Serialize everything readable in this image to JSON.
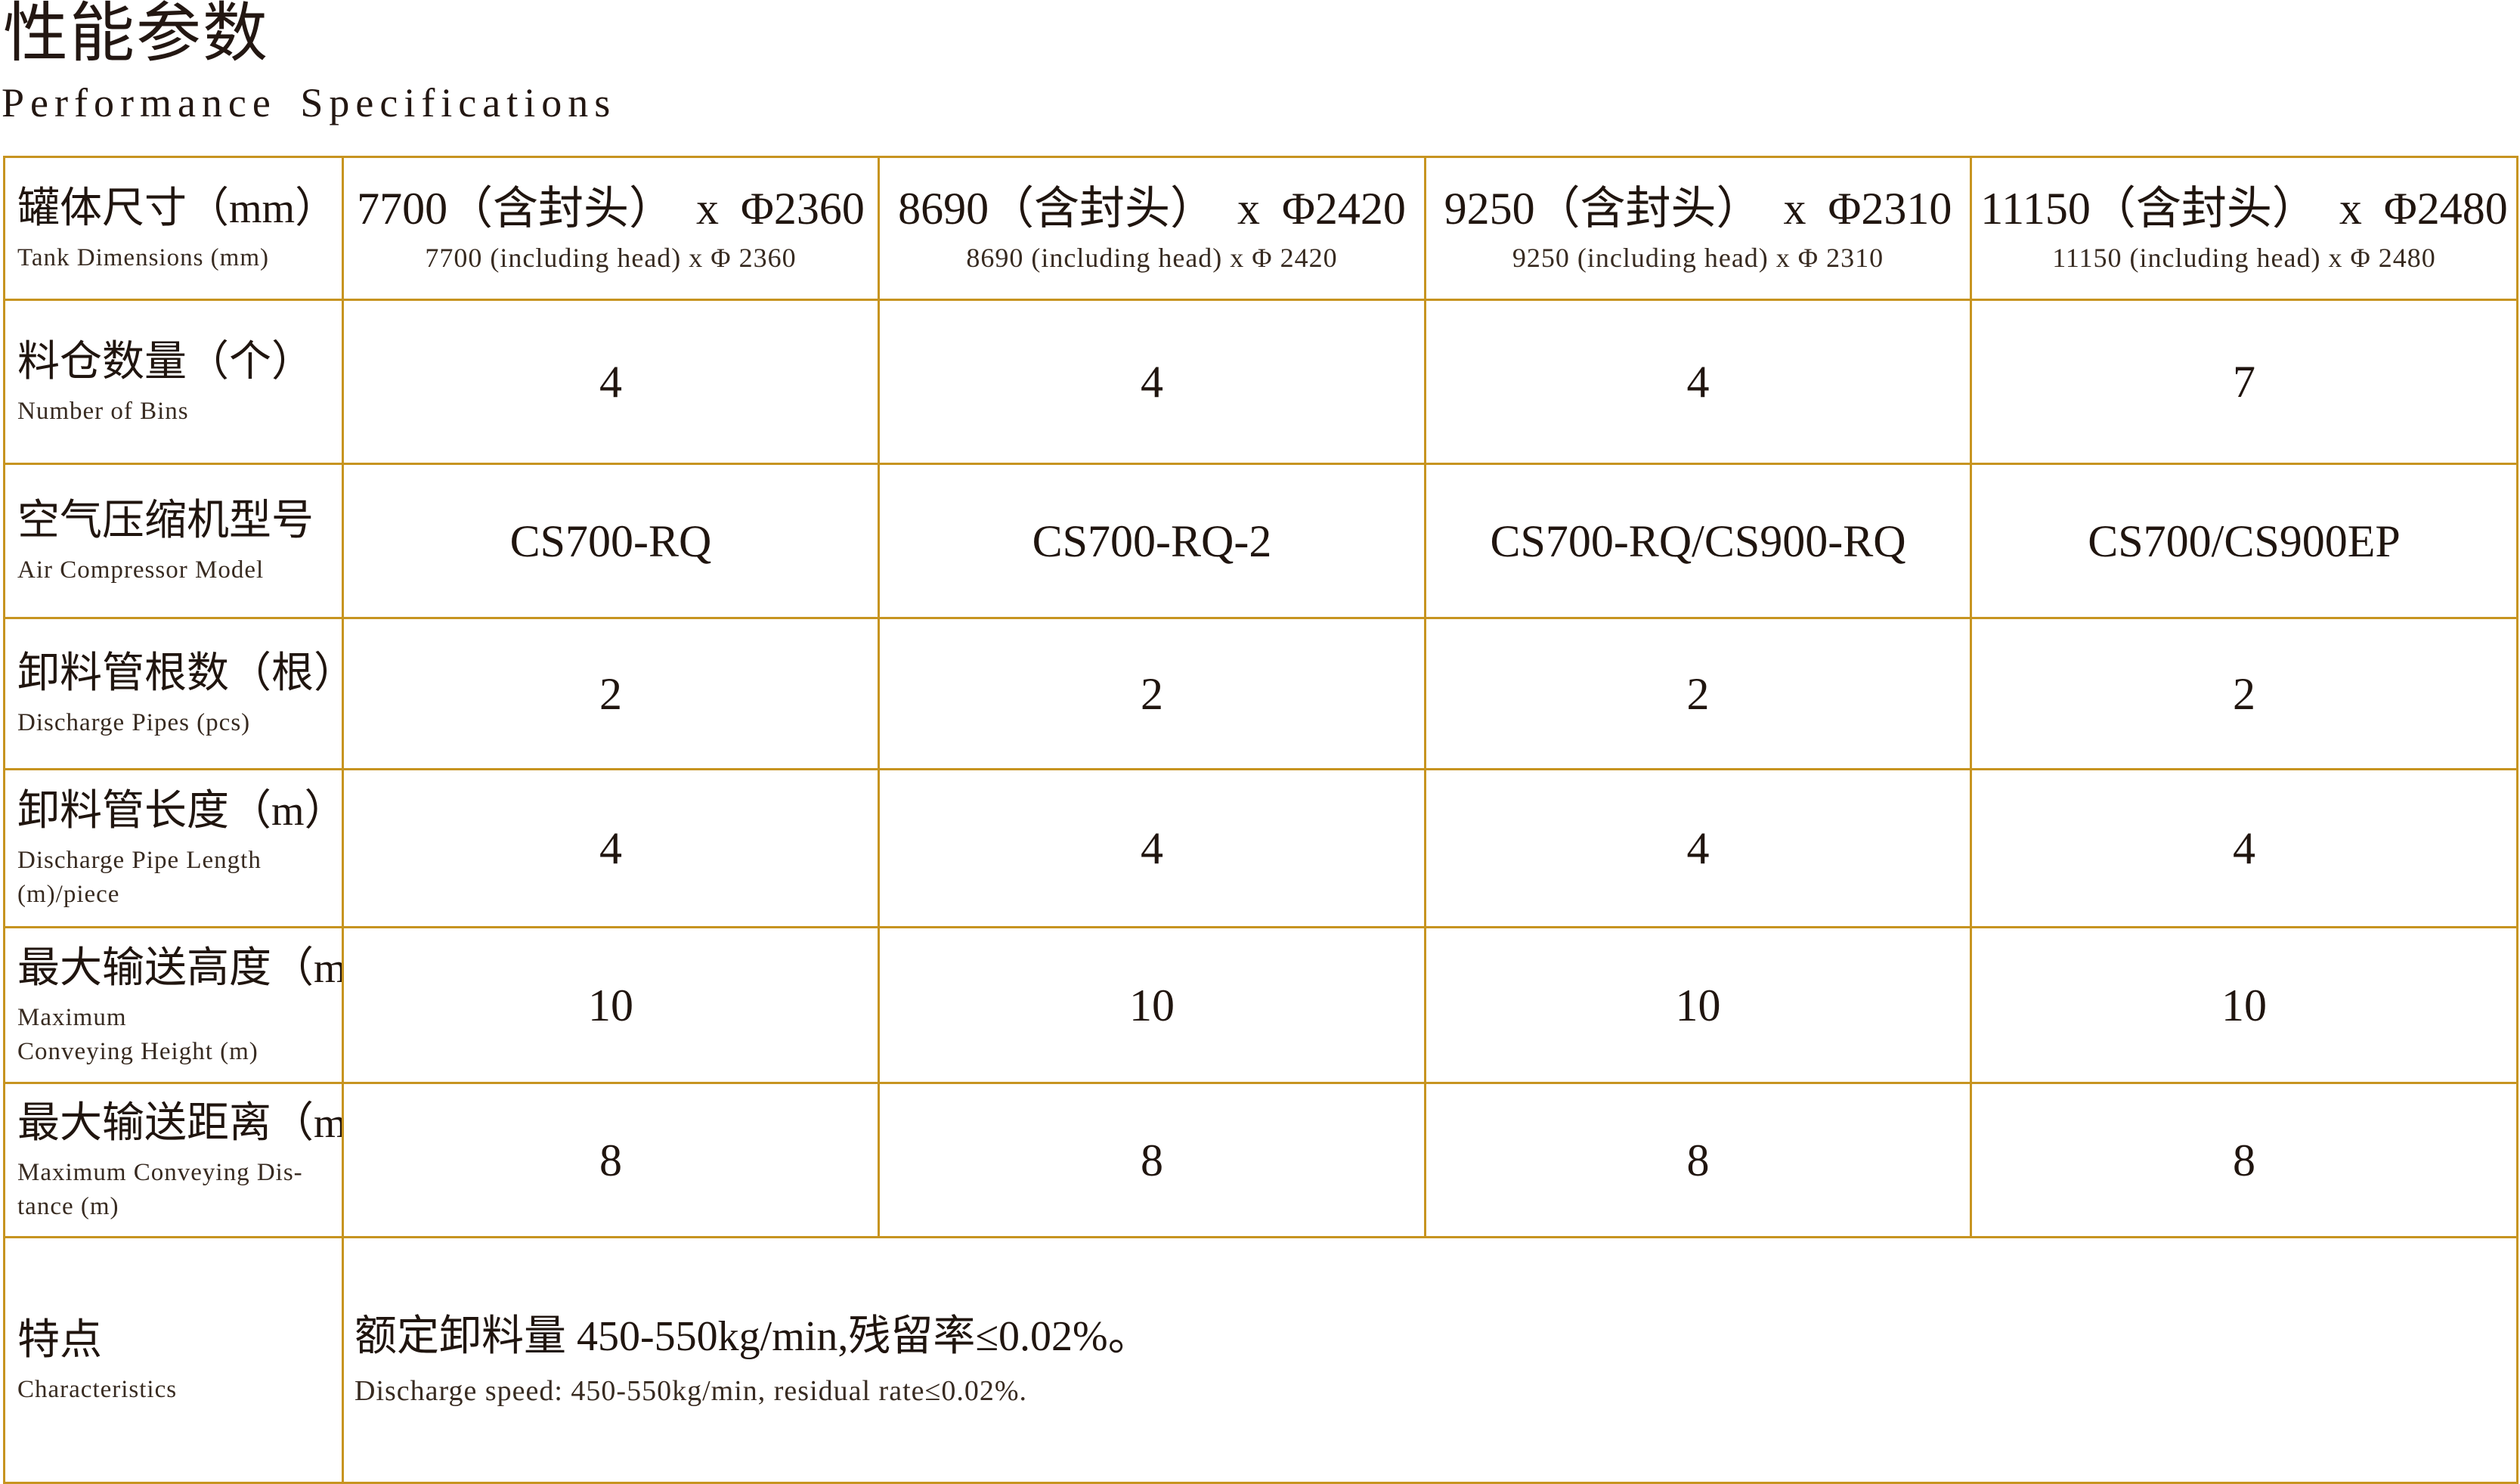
{
  "page": {
    "title_zh": "性能参数",
    "title_en": "Performance Specifications"
  },
  "colors": {
    "table_border": "#C79420",
    "text_primary": "#20150F",
    "text_secondary": "#372A20"
  },
  "table": {
    "rows": [
      {
        "zh": "罐体尺寸（mm）",
        "en": "Tank Dimensions (mm)",
        "cells": [
          {
            "main": "7700（含封头） x Φ2360",
            "sub": "7700 (including head) x Φ 2360"
          },
          {
            "main": "8690（含封头） x Φ2420",
            "sub": "8690 (including head) x Φ 2420"
          },
          {
            "main": "9250（含封头） x Φ2310",
            "sub": "9250 (including head) x Φ 2310"
          },
          {
            "main": "11150（含封头） x Φ2480",
            "sub": "11150 (including head) x Φ 2480"
          }
        ]
      },
      {
        "zh": "料仓数量（个）",
        "en": "Number of Bins",
        "values": [
          "4",
          "4",
          "4",
          "7"
        ]
      },
      {
        "zh": "空气压缩机型号",
        "en": "Air Compressor Model",
        "values": [
          "CS700-RQ",
          "CS700-RQ-2",
          "CS700-RQ/CS900-RQ",
          "CS700/CS900EP"
        ]
      },
      {
        "zh": "卸料管根数（根）",
        "en": "Discharge Pipes (pcs)",
        "values": [
          "2",
          "2",
          "2",
          "2"
        ]
      },
      {
        "zh": "卸料管长度（m）/根",
        "en": "Discharge Pipe Length\n(m)/piece",
        "values": [
          "4",
          "4",
          "4",
          "4"
        ]
      },
      {
        "zh": "最大输送高度（m）",
        "en": "Maximum\nConveying Height (m)",
        "values": [
          "10",
          "10",
          "10",
          "10"
        ]
      },
      {
        "zh": "最大输送距离（m）",
        "en": "Maximum Conveying Dis-\ntance (m)",
        "values": [
          "8",
          "8",
          "8",
          "8"
        ]
      }
    ],
    "footer": {
      "zh": "特点",
      "en": "Characteristics",
      "value_zh": "额定卸料量 450-550kg/min,残留率≤0.02%。",
      "value_en": "Discharge speed: 450-550kg/min, residual rate≤0.02%."
    }
  }
}
